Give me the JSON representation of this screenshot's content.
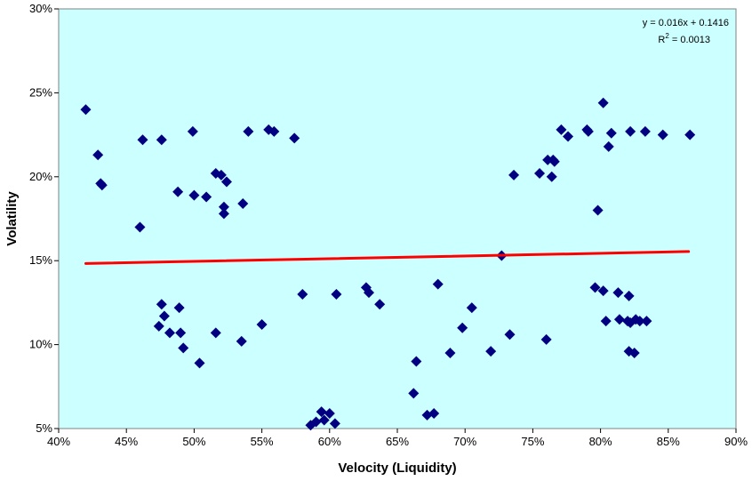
{
  "chart_data": {
    "type": "scatter",
    "title": "",
    "xlabel": "Velocity (Liquidity)",
    "ylabel": "Volatility",
    "xlim": [
      0.4,
      0.9
    ],
    "ylim": [
      0.05,
      0.3
    ],
    "x_ticks": [
      0.4,
      0.45,
      0.5,
      0.55,
      0.6,
      0.65,
      0.7,
      0.75,
      0.8,
      0.85,
      0.9
    ],
    "x_tick_labels": [
      "40%",
      "45%",
      "50%",
      "55%",
      "60%",
      "65%",
      "70%",
      "75%",
      "80%",
      "85%",
      "90%"
    ],
    "y_ticks": [
      0.05,
      0.1,
      0.15,
      0.2,
      0.25,
      0.3
    ],
    "y_tick_labels": [
      "5%",
      "10%",
      "15%",
      "20%",
      "25%",
      "30%"
    ],
    "grid": false,
    "plot_background": "#ccffff",
    "marker_color": "#000080",
    "trendline_color": "#ff0000",
    "trendline": {
      "slope": 0.016,
      "intercept": 0.1416,
      "x_range": [
        0.42,
        0.865
      ]
    },
    "annotations": {
      "equation": "y = 0.016x + 0.1416",
      "r2_prefix": "R",
      "r2_sup": "2",
      "r2_suffix": " = 0.0013"
    },
    "points": [
      [
        0.42,
        0.24
      ],
      [
        0.429,
        0.213
      ],
      [
        0.431,
        0.196
      ],
      [
        0.432,
        0.195
      ],
      [
        0.46,
        0.17
      ],
      [
        0.462,
        0.222
      ],
      [
        0.476,
        0.222
      ],
      [
        0.488,
        0.191
      ],
      [
        0.499,
        0.227
      ],
      [
        0.5,
        0.189
      ],
      [
        0.509,
        0.188
      ],
      [
        0.516,
        0.202
      ],
      [
        0.52,
        0.201
      ],
      [
        0.522,
        0.178
      ],
      [
        0.522,
        0.182
      ],
      [
        0.524,
        0.197
      ],
      [
        0.536,
        0.184
      ],
      [
        0.54,
        0.227
      ],
      [
        0.555,
        0.228
      ],
      [
        0.559,
        0.227
      ],
      [
        0.574,
        0.223
      ],
      [
        0.474,
        0.111
      ],
      [
        0.476,
        0.124
      ],
      [
        0.478,
        0.117
      ],
      [
        0.482,
        0.107
      ],
      [
        0.489,
        0.122
      ],
      [
        0.49,
        0.107
      ],
      [
        0.492,
        0.098
      ],
      [
        0.504,
        0.089
      ],
      [
        0.516,
        0.107
      ],
      [
        0.535,
        0.102
      ],
      [
        0.55,
        0.112
      ],
      [
        0.58,
        0.13
      ],
      [
        0.605,
        0.13
      ],
      [
        0.586,
        0.052
      ],
      [
        0.59,
        0.054
      ],
      [
        0.594,
        0.06
      ],
      [
        0.596,
        0.055
      ],
      [
        0.6,
        0.059
      ],
      [
        0.604,
        0.053
      ],
      [
        0.627,
        0.134
      ],
      [
        0.629,
        0.131
      ],
      [
        0.637,
        0.124
      ],
      [
        0.662,
        0.071
      ],
      [
        0.664,
        0.09
      ],
      [
        0.672,
        0.058
      ],
      [
        0.677,
        0.059
      ],
      [
        0.68,
        0.136
      ],
      [
        0.689,
        0.095
      ],
      [
        0.698,
        0.11
      ],
      [
        0.705,
        0.122
      ],
      [
        0.719,
        0.096
      ],
      [
        0.727,
        0.153
      ],
      [
        0.733,
        0.106
      ],
      [
        0.736,
        0.201
      ],
      [
        0.755,
        0.202
      ],
      [
        0.76,
        0.103
      ],
      [
        0.761,
        0.21
      ],
      [
        0.764,
        0.2
      ],
      [
        0.765,
        0.21
      ],
      [
        0.766,
        0.209
      ],
      [
        0.771,
        0.228
      ],
      [
        0.776,
        0.224
      ],
      [
        0.79,
        0.228
      ],
      [
        0.791,
        0.227
      ],
      [
        0.796,
        0.134
      ],
      [
        0.798,
        0.18
      ],
      [
        0.802,
        0.244
      ],
      [
        0.802,
        0.132
      ],
      [
        0.804,
        0.114
      ],
      [
        0.806,
        0.218
      ],
      [
        0.808,
        0.226
      ],
      [
        0.813,
        0.131
      ],
      [
        0.814,
        0.115
      ],
      [
        0.82,
        0.114
      ],
      [
        0.822,
        0.227
      ],
      [
        0.821,
        0.129
      ],
      [
        0.821,
        0.096
      ],
      [
        0.822,
        0.113
      ],
      [
        0.825,
        0.095
      ],
      [
        0.826,
        0.115
      ],
      [
        0.829,
        0.114
      ],
      [
        0.833,
        0.227
      ],
      [
        0.834,
        0.114
      ],
      [
        0.846,
        0.225
      ],
      [
        0.866,
        0.225
      ]
    ]
  }
}
